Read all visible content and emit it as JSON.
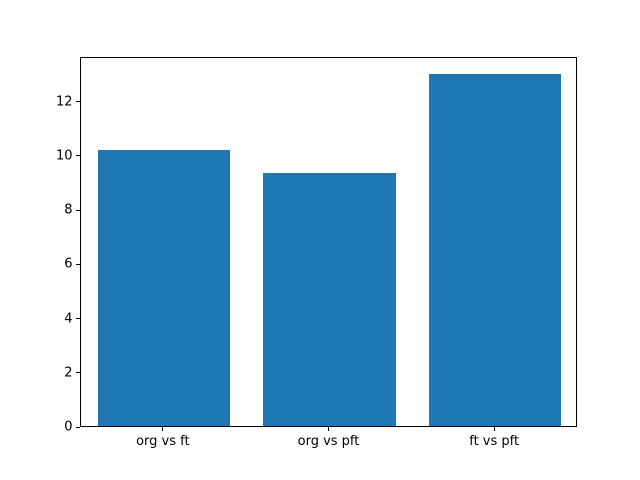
{
  "figure": {
    "background": "#ffffff",
    "frame_color": "#000000"
  },
  "chart_data": {
    "type": "bar",
    "title": "",
    "xlabel": "",
    "ylabel": "",
    "categories": [
      "org vs ft",
      "org vs pft",
      "ft vs pft"
    ],
    "values": [
      10.2,
      9.35,
      13.0
    ],
    "bar_color": "#1f77b4",
    "bar_width_fraction": 0.8,
    "ylim": [
      0,
      13.65
    ],
    "yticks": [
      0,
      2,
      4,
      6,
      8,
      10,
      12
    ],
    "grid": false,
    "legend": false
  }
}
